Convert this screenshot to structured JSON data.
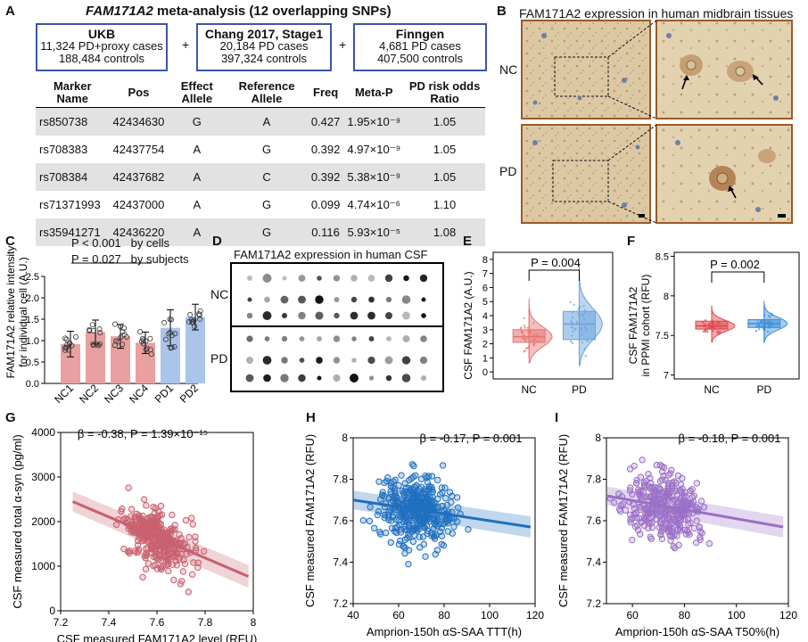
{
  "panels": {
    "A": "A",
    "B": "B",
    "C": "C",
    "D": "D",
    "E": "E",
    "F": "F",
    "G": "G",
    "H": "H",
    "I": "I"
  },
  "panelA": {
    "title_gene": "FAM171A2",
    "title_rest": " meta-analysis (12 overlapping SNPs)",
    "cohorts": [
      {
        "name": "UKB",
        "line1": "11,324 PD+proxy cases",
        "line2": "188,484 controls"
      },
      {
        "name": "Chang 2017, Stage1",
        "line1": "20,184 PD cases",
        "line2": "397,324 controls"
      },
      {
        "name": "Finngen",
        "line1": "4,681 PD cases",
        "line2": "407,500 controls"
      }
    ],
    "plus": "+",
    "table": {
      "headers": [
        "Marker Name",
        "Pos",
        "Effect Allele",
        "Reference Allele",
        "Freq",
        "Meta-P",
        "PD risk odds Ratio"
      ],
      "rows": [
        [
          "rs850738",
          "42434630",
          "G",
          "A",
          "0.427",
          "1.95×10⁻⁹",
          "1.05"
        ],
        [
          "rs708383",
          "42437754",
          "A",
          "G",
          "0.392",
          "4.97×10⁻⁹",
          "1.05"
        ],
        [
          "rs708384",
          "42437682",
          "A",
          "C",
          "0.392",
          "5.38×10⁻⁹",
          "1.05"
        ],
        [
          "rs71371993",
          "42437000",
          "A",
          "G",
          "0.099",
          "4.74×10⁻⁶",
          "1.10"
        ],
        [
          "rs35941271",
          "42436220",
          "A",
          "G",
          "0.116",
          "5.93×10⁻⁵",
          "1.08"
        ]
      ]
    }
  },
  "panelB": {
    "title": "FAM171A2 expression in human midbrain tissues",
    "rows": [
      "NC",
      "PD"
    ]
  },
  "panelC": {
    "stat1": "P < 0.001   by cells",
    "stat2": "P = 0.027   by subjects",
    "ylabel1": "FAM171A2 relative intensity",
    "ylabel2": "for individual cell (A.U.)",
    "colors": {
      "nc": "#e8a0a0",
      "pd": "#aac4ea"
    }
  },
  "panelD": {
    "title": "FAM171A2 expression in human CSF",
    "rows": [
      "NC",
      "PD"
    ]
  },
  "panelE": {
    "stat": "P = 0.004",
    "colors": {
      "nc": "#e57373",
      "pd": "#6aa2dd"
    }
  },
  "panelF": {
    "stat": "P = 0.002",
    "colors": {
      "nc": "#e0454a",
      "pd": "#3a8ed8"
    }
  },
  "panelG": {
    "stat": "β = -0.38, P = 1.39×10⁻¹⁵",
    "color": "#c8606e"
  },
  "panelH": {
    "stat": "β = -0.17, P = 0.001",
    "color": "#1f6fbf"
  },
  "panelI": {
    "stat": "β = -0.18, P = 0.001",
    "color": "#9a6fc6"
  },
  "chart_data": [
    {
      "panel": "C",
      "type": "bar",
      "categories": [
        "NC1",
        "NC2",
        "NC3",
        "NC4",
        "PD1",
        "PD2"
      ],
      "values": [
        0.92,
        1.2,
        1.1,
        0.95,
        1.3,
        1.55
      ],
      "errors": [
        0.3,
        0.28,
        0.28,
        0.25,
        0.42,
        0.3
      ],
      "ylabel": "FAM171A2 relative intensity for individual cell (A.U.)",
      "ylim": [
        0,
        2.5
      ],
      "yticks": [
        0,
        0.5,
        1.0,
        1.5,
        2.0,
        2.5
      ]
    },
    {
      "panel": "E",
      "type": "box+violin",
      "categories": [
        "NC",
        "PD"
      ],
      "median": [
        2.5,
        3.4
      ],
      "q1": [
        2.1,
        2.3
      ],
      "q3": [
        3.0,
        4.3
      ],
      "whisker_low": [
        1.0,
        1.0
      ],
      "whisker_high": [
        4.5,
        6.5
      ],
      "ylabel": "CSF FAM171A2 (A.U.)",
      "ylim": [
        -0.5,
        8.5
      ],
      "yticks": [
        0,
        1,
        2,
        3,
        4,
        5,
        6,
        7,
        8
      ]
    },
    {
      "panel": "F",
      "type": "box+violin",
      "categories": [
        "NC",
        "PD"
      ],
      "median": [
        7.62,
        7.65
      ],
      "q1": [
        7.58,
        7.6
      ],
      "q3": [
        7.68,
        7.7
      ],
      "whisker_low": [
        7.45,
        7.45
      ],
      "whisker_high": [
        7.8,
        7.85
      ],
      "ylabel": "CSF FAM171A2 in PPMI cohort (RFU)",
      "ylim": [
        6.95,
        8.55
      ],
      "yticks": [
        7.0,
        7.5,
        8.0,
        8.5
      ]
    },
    {
      "panel": "G",
      "type": "scatter",
      "xlabel": "CSF measured FAM171A2 level (RFU)",
      "ylabel": "CSF measured total α-syn (pg/ml)",
      "xlim": [
        7.2,
        8.0
      ],
      "ylim": [
        0,
        4000
      ],
      "xticks": [
        7.2,
        7.4,
        7.6,
        7.8,
        8.0
      ],
      "yticks": [
        0,
        1000,
        2000,
        3000,
        4000
      ],
      "fit": {
        "x": [
          7.25,
          7.98
        ],
        "y": [
          2450,
          770
        ]
      },
      "x_center": 7.6,
      "x_spread": 0.12,
      "y_center": 1550,
      "y_spread": 550
    },
    {
      "panel": "H",
      "type": "scatter",
      "xlabel": "Amprion-150h αS-SAA TTT(h)",
      "ylabel": "CSF measured FAM171A2 (RFU)",
      "xlim": [
        40,
        120
      ],
      "ylim": [
        7.2,
        8.0
      ],
      "xticks": [
        40,
        60,
        80,
        100,
        120
      ],
      "yticks": [
        7.2,
        7.4,
        7.6,
        7.8,
        8.0
      ],
      "fit": {
        "x": [
          40,
          118
        ],
        "y": [
          7.7,
          7.57
        ]
      },
      "x_center": 68,
      "x_spread": 14,
      "y_center": 7.64,
      "y_spread": 0.14
    },
    {
      "panel": "I",
      "type": "scatter",
      "xlabel": "Amprion-150h αS-SAA T50%(h)",
      "ylabel": "CSF measured FAM171A2 (RFU)",
      "xlim": [
        50,
        120
      ],
      "ylim": [
        7.2,
        8.0
      ],
      "xticks": [
        60,
        80,
        100,
        120
      ],
      "yticks": [
        7.2,
        7.4,
        7.6,
        7.8,
        8.0
      ],
      "fit": {
        "x": [
          50,
          118
        ],
        "y": [
          7.72,
          7.57
        ]
      },
      "x_center": 72,
      "x_spread": 12,
      "y_center": 7.65,
      "y_spread": 0.14
    }
  ]
}
